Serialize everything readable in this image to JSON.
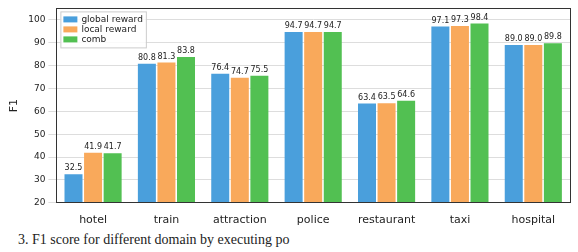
{
  "chart_data": {
    "type": "bar",
    "y_label": "F1",
    "caption": "3.  F1 score for different domain by executing po",
    "categories": [
      "hotel",
      "train",
      "attraction",
      "police",
      "restaurant",
      "taxi",
      "hospital"
    ],
    "series": [
      {
        "name": "global reward",
        "color": "#4a9fdc",
        "values": [
          32.5,
          80.8,
          76.4,
          94.7,
          63.4,
          97.1,
          89.0
        ],
        "value_labels": [
          "32.5",
          "80.8",
          "76.4",
          "94.7",
          "63.4",
          "97.1",
          "89.0"
        ]
      },
      {
        "name": "local reward",
        "color": "#f9a95b",
        "values": [
          41.9,
          81.3,
          74.7,
          94.7,
          63.5,
          97.3,
          89.0
        ],
        "value_labels": [
          "41.9",
          "81.3",
          "74.7",
          "94.7",
          "63.5",
          "97.3",
          "89.0"
        ]
      },
      {
        "name": "comb",
        "color": "#52c052",
        "values": [
          41.7,
          83.8,
          75.5,
          94.7,
          64.6,
          98.4,
          89.8
        ],
        "value_labels": [
          "41.7",
          "83.8",
          "75.5",
          "94.7",
          "64.6",
          "98.4",
          "89.8"
        ]
      }
    ],
    "ylim": [
      20,
      105
    ],
    "yticks": [
      20,
      30,
      40,
      50,
      60,
      70,
      80,
      90,
      100
    ],
    "grid": true,
    "legend": "upper left",
    "data_labels": true
  }
}
